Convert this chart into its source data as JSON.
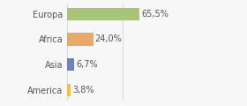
{
  "categories": [
    "America",
    "Asia",
    "Africa",
    "Europa"
  ],
  "values": [
    3.8,
    6.7,
    24.0,
    65.5
  ],
  "labels": [
    "3,8%",
    "6,7%",
    "24,0%",
    "65,5%"
  ],
  "bar_colors": [
    "#f0c040",
    "#7080c0",
    "#e8a96a",
    "#a8c47a"
  ],
  "background_color": "#f7f7f7",
  "xlim": [
    0,
    100
  ],
  "bar_height": 0.5,
  "label_fontsize": 7.0,
  "tick_fontsize": 7.0,
  "grid_color": "#d0d0d0",
  "text_color": "#555555"
}
